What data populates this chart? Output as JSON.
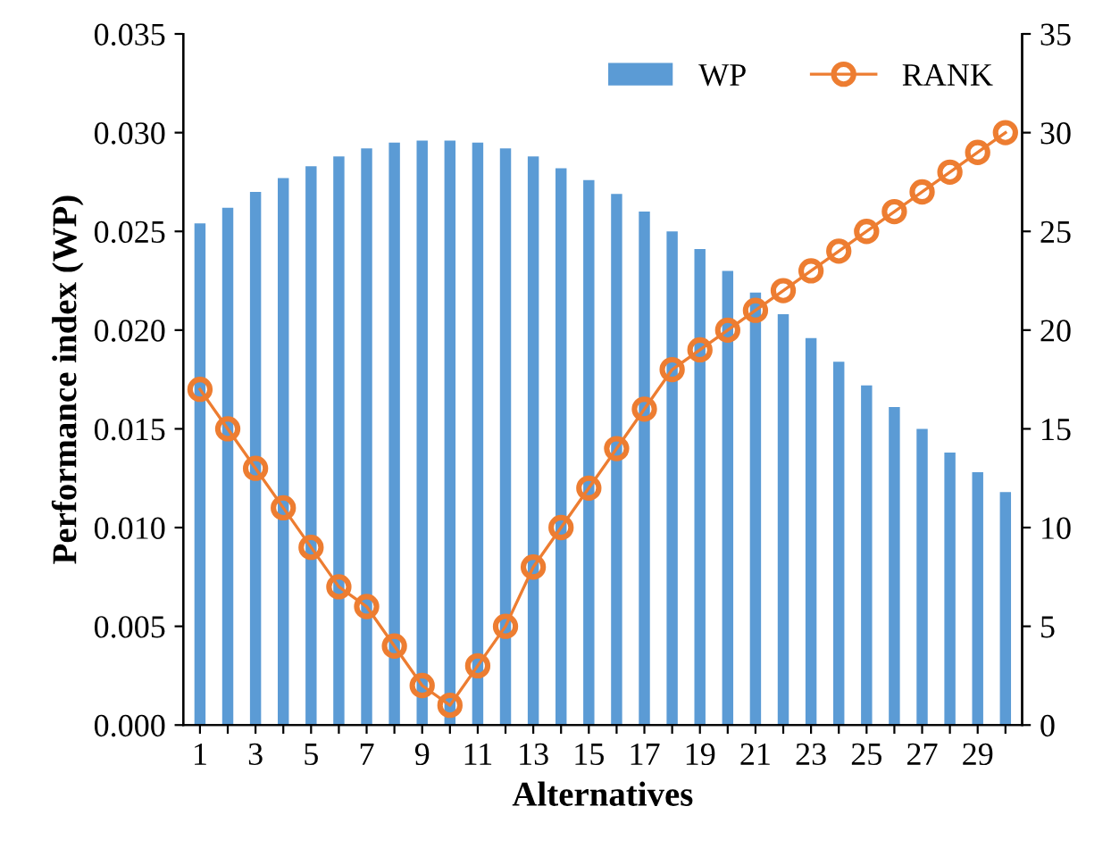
{
  "chart_data": {
    "type": "bar",
    "xlabel": "Alternatives",
    "ylabel": "Performance index (WP)",
    "categories": [
      "1",
      null,
      "3",
      null,
      "5",
      null,
      "7",
      null,
      "9",
      null,
      "11",
      null,
      "13",
      null,
      "15",
      null,
      "17",
      null,
      "19",
      null,
      "21",
      null,
      "23",
      null,
      "25",
      null,
      "27",
      null,
      "29",
      null
    ],
    "series": [
      {
        "name": "WP",
        "color": "#5b9bd5",
        "values": [
          0.0254,
          0.0262,
          0.027,
          0.0277,
          0.0283,
          0.0288,
          0.0292,
          0.0295,
          0.0296,
          0.0296,
          0.0295,
          0.0292,
          0.0288,
          0.0282,
          0.0276,
          0.0269,
          0.026,
          0.025,
          0.0241,
          0.023,
          0.0219,
          0.0208,
          0.0196,
          0.0184,
          0.0172,
          0.0161,
          0.015,
          0.0138,
          0.0128,
          0.0118
        ]
      },
      {
        "name": "RANK",
        "type": "line",
        "axis": "y2",
        "color": "#ed7d31",
        "marker": "circle",
        "values": [
          17,
          15,
          13,
          11,
          9,
          7,
          6,
          4,
          2,
          1,
          3,
          5,
          8,
          10,
          12,
          14,
          16,
          18,
          19,
          20,
          21,
          22,
          23,
          24,
          25,
          26,
          27,
          28,
          29,
          30
        ]
      }
    ],
    "ylim": [
      0,
      0.035
    ],
    "yticks": [
      {
        "value": 0,
        "label": "0.000"
      },
      {
        "value": 0.005,
        "label": "0.005"
      },
      {
        "value": 0.01,
        "label": "0.010"
      },
      {
        "value": 0.015,
        "label": "0.015"
      },
      {
        "value": 0.02,
        "label": "0.020"
      },
      {
        "value": 0.025,
        "label": "0.025"
      },
      {
        "value": 0.03,
        "label": "0.030"
      },
      {
        "value": 0.035,
        "label": "0.035"
      }
    ],
    "y2lim": [
      0,
      35
    ],
    "y2ticks": [
      0,
      5,
      10,
      15,
      20,
      25,
      30,
      35
    ],
    "grid": false,
    "legend": "top right"
  }
}
